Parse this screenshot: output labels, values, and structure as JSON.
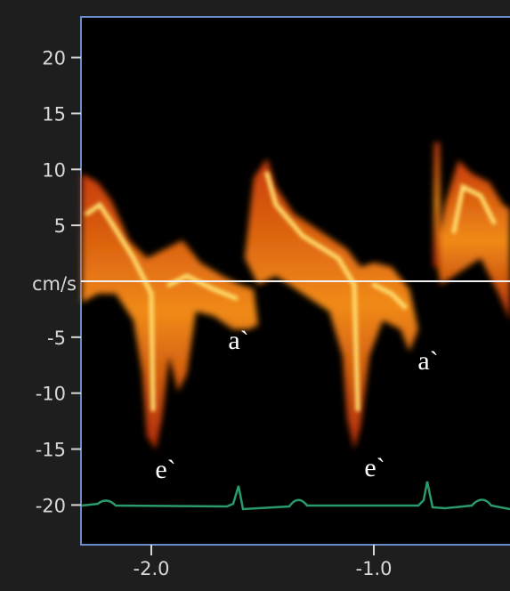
{
  "y_axis": {
    "unit_label": "cm/s",
    "ticks": [
      20,
      15,
      10,
      5,
      -5,
      -10,
      -15,
      -20
    ]
  },
  "x_axis": {
    "ticks": [
      {
        "value": -2,
        "label": "-2.0"
      },
      {
        "value": -1,
        "label": "-1.0"
      }
    ]
  },
  "annotations": [
    "a`",
    "a`",
    "e`",
    "e`"
  ]
}
